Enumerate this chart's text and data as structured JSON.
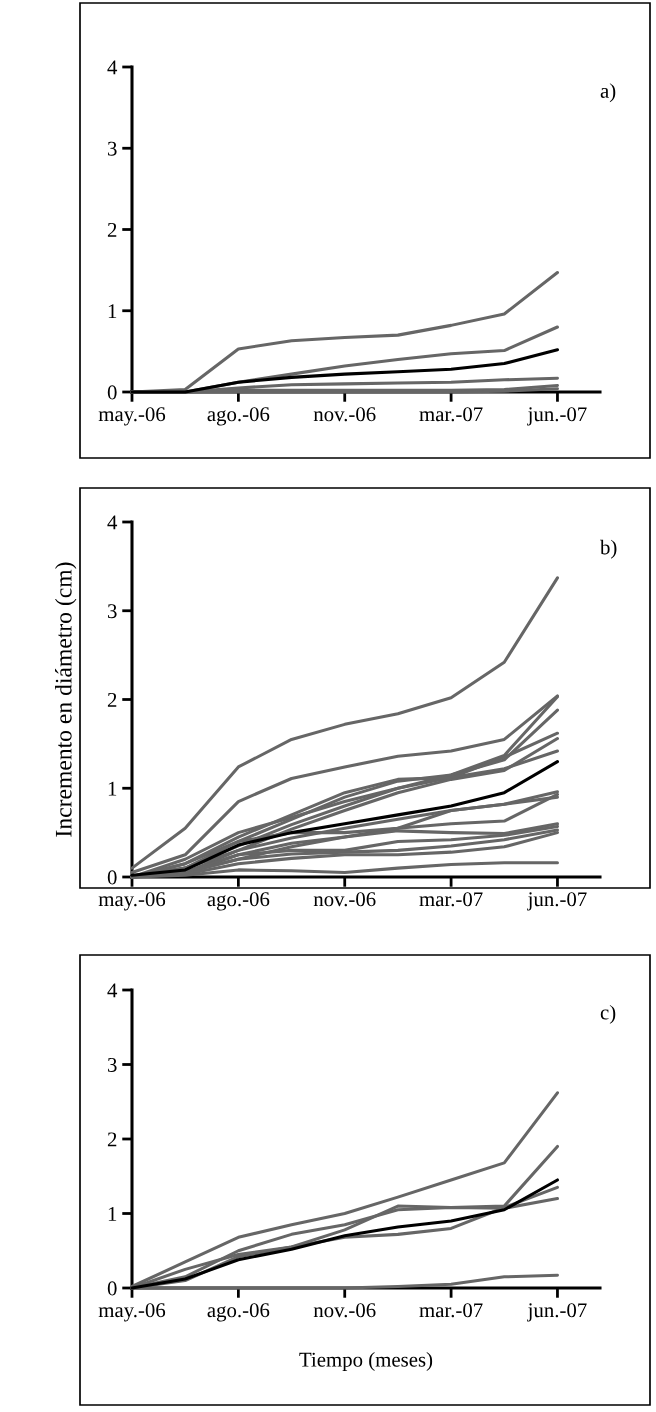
{
  "chart_data": [
    {
      "type": "line",
      "annotations": [
        "a)"
      ],
      "categories": [
        "may.-06",
        null,
        "ago.-06",
        null,
        "nov.-06",
        null,
        "mar.-07",
        null,
        "jun.-07"
      ],
      "ylim": [
        0,
        4
      ],
      "yticks": [
        0,
        1,
        2,
        3,
        4
      ],
      "line_style": "solid",
      "series": [
        {
          "color": "#666666",
          "values": [
            0,
            0.03,
            0.53,
            0.63,
            0.67,
            0.7,
            0.82,
            0.96,
            1.47
          ]
        },
        {
          "color": "#666666",
          "values": [
            0,
            0,
            0.12,
            0.22,
            0.32,
            0.4,
            0.47,
            0.51,
            0.8
          ]
        },
        {
          "color": "#666666",
          "values": [
            0,
            0,
            0.05,
            0.09,
            0.1,
            0.11,
            0.12,
            0.15,
            0.17
          ]
        },
        {
          "color": "#666666",
          "values": [
            0,
            0,
            0.02,
            0.02,
            0.02,
            0.02,
            0.02,
            0.03,
            0.08
          ]
        },
        {
          "color": "#666666",
          "values": [
            0,
            0,
            0,
            0,
            0,
            0,
            0,
            0.01,
            0.04
          ]
        },
        {
          "color": "#000000",
          "values": [
            0,
            0,
            0.12,
            0.18,
            0.22,
            0.25,
            0.28,
            0.35,
            0.52
          ]
        }
      ]
    },
    {
      "type": "line",
      "ylabel": "Incremento en diámetro (cm)",
      "annotations": [
        "b)"
      ],
      "categories": [
        "may.-06",
        null,
        "ago.-06",
        null,
        "nov.-06",
        null,
        "mar.-07",
        null,
        "jun.-07"
      ],
      "ylim": [
        0,
        4
      ],
      "yticks": [
        0,
        1,
        2,
        3,
        4
      ],
      "line_style": "solid",
      "series": [
        {
          "color": "#666666",
          "values": [
            0.1,
            0.55,
            1.24,
            1.55,
            1.72,
            1.84,
            2.02,
            2.42,
            3.37
          ]
        },
        {
          "color": "#666666",
          "values": [
            0.05,
            0.25,
            0.85,
            1.11,
            1.24,
            1.36,
            1.42,
            1.55,
            2.04
          ]
        },
        {
          "color": "#666666",
          "values": [
            0,
            0.15,
            0.4,
            0.65,
            0.9,
            1.08,
            1.15,
            1.37,
            2.03
          ]
        },
        {
          "color": "#666666",
          "values": [
            0,
            0.1,
            0.35,
            0.59,
            0.8,
            1.0,
            1.15,
            1.32,
            1.88
          ]
        },
        {
          "color": "#666666",
          "values": [
            0,
            0.2,
            0.5,
            0.67,
            0.85,
            1.0,
            1.12,
            1.35,
            1.62
          ]
        },
        {
          "color": "#666666",
          "values": [
            0,
            0.1,
            0.3,
            0.54,
            0.75,
            0.95,
            1.1,
            1.2,
            1.56
          ]
        },
        {
          "color": "#666666",
          "values": [
            0,
            0.15,
            0.45,
            0.7,
            0.95,
            1.1,
            1.12,
            1.22,
            1.42
          ]
        },
        {
          "color": "#666666",
          "values": [
            0,
            0.05,
            0.3,
            0.44,
            0.55,
            0.65,
            0.75,
            0.82,
            0.96
          ]
        },
        {
          "color": "#666666",
          "values": [
            0,
            0.05,
            0.25,
            0.38,
            0.45,
            0.55,
            0.6,
            0.63,
            0.93
          ]
        },
        {
          "color": "#666666",
          "values": [
            0,
            0.1,
            0.4,
            0.5,
            0.5,
            0.55,
            0.75,
            0.82,
            0.9
          ]
        },
        {
          "color": "#666666",
          "values": [
            0,
            0.05,
            0.2,
            0.34,
            0.45,
            0.52,
            0.5,
            0.49,
            0.6
          ]
        },
        {
          "color": "#666666",
          "values": [
            0,
            0.05,
            0.25,
            0.3,
            0.3,
            0.4,
            0.42,
            0.47,
            0.57
          ]
        },
        {
          "color": "#666666",
          "values": [
            0,
            0.05,
            0.2,
            0.26,
            0.28,
            0.3,
            0.35,
            0.42,
            0.53
          ]
        },
        {
          "color": "#666666",
          "values": [
            0,
            0.03,
            0.15,
            0.21,
            0.25,
            0.25,
            0.28,
            0.34,
            0.5
          ]
        },
        {
          "color": "#666666",
          "values": [
            0,
            0.02,
            0.08,
            0.07,
            0.05,
            0.1,
            0.14,
            0.16,
            0.16
          ]
        },
        {
          "color": "#000000",
          "values": [
            0.02,
            0.08,
            0.36,
            0.5,
            0.6,
            0.7,
            0.8,
            0.95,
            1.3
          ]
        }
      ]
    },
    {
      "type": "line",
      "xlabel": "Tiempo (meses)",
      "annotations": [
        "c)"
      ],
      "categories": [
        "may.-06",
        null,
        "ago.-06",
        null,
        "nov.-06",
        null,
        "mar.-07",
        null,
        "jun.-07"
      ],
      "ylim": [
        0,
        4
      ],
      "yticks": [
        0,
        1,
        2,
        3,
        4
      ],
      "line_style": "solid",
      "series": [
        {
          "color": "#666666",
          "values": [
            0.02,
            0.35,
            0.68,
            0.85,
            1.0,
            1.22,
            1.45,
            1.68,
            2.62
          ]
        },
        {
          "color": "#666666",
          "values": [
            0,
            0.1,
            0.42,
            0.55,
            0.78,
            1.1,
            1.08,
            1.1,
            1.9
          ]
        },
        {
          "color": "#666666",
          "values": [
            0,
            0.25,
            0.45,
            0.55,
            0.68,
            0.72,
            0.8,
            1.08,
            1.35
          ]
        },
        {
          "color": "#666666",
          "values": [
            0,
            0.15,
            0.5,
            0.72,
            0.85,
            1.05,
            1.08,
            1.07,
            1.2
          ]
        },
        {
          "color": "#666666",
          "values": [
            0,
            0,
            0,
            0,
            0,
            0.02,
            0.05,
            0.15,
            0.17
          ]
        },
        {
          "color": "#000000",
          "values": [
            0,
            0.12,
            0.38,
            0.52,
            0.7,
            0.82,
            0.9,
            1.05,
            1.45
          ]
        }
      ]
    }
  ]
}
